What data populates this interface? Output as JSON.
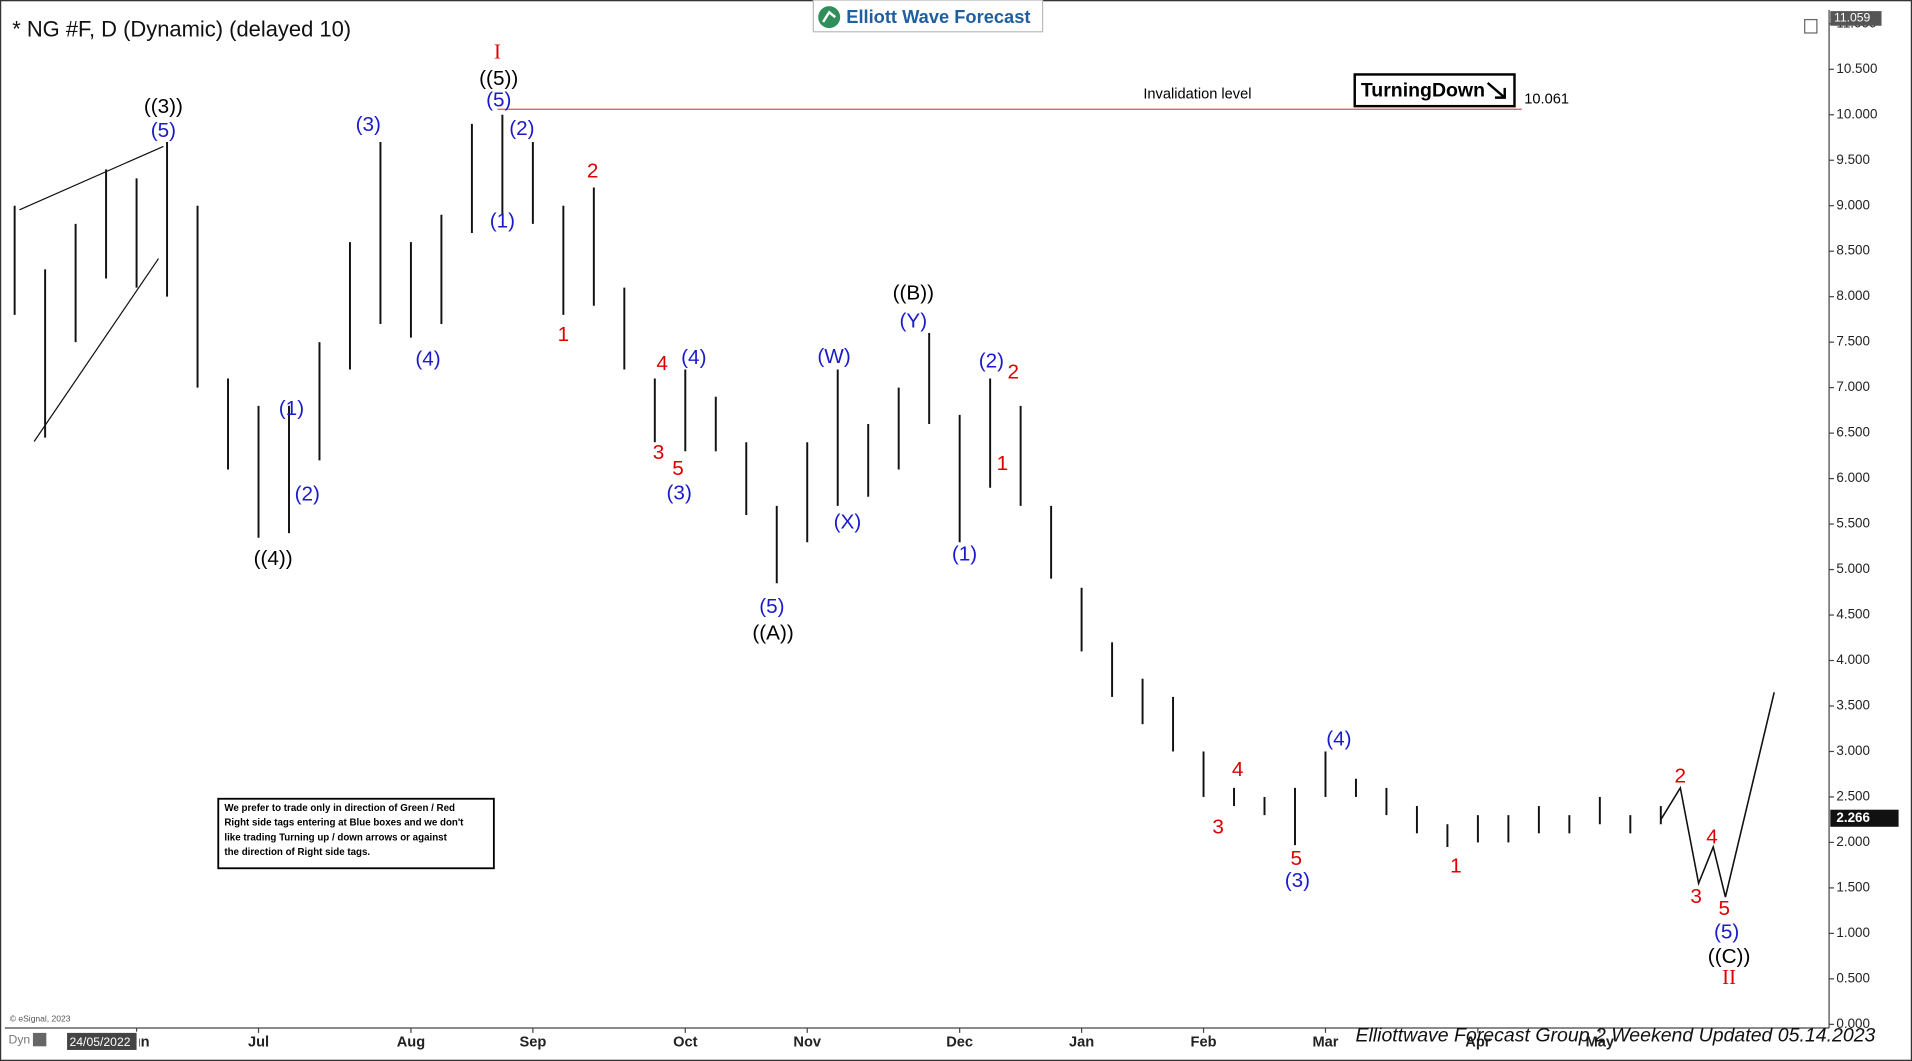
{
  "chart_data": {
    "type": "ohlc",
    "title": "* NG #F, D (Dynamic) (delayed 10)",
    "color": "#111111",
    "categories": [
      null,
      null,
      null,
      null,
      "Jun",
      null,
      null,
      null,
      "Jul",
      null,
      null,
      null,
      null,
      "Aug",
      null,
      null,
      null,
      "Sep",
      null,
      null,
      null,
      null,
      "Oct",
      null,
      null,
      null,
      "Nov",
      null,
      null,
      null,
      null,
      "Dec",
      null,
      null,
      null,
      "Jan",
      null,
      null,
      null,
      "Feb",
      null,
      null,
      null,
      "Mar",
      null,
      null,
      null,
      null,
      "Apr",
      null,
      null,
      null,
      "May",
      null,
      null
    ],
    "high": [
      9.0,
      8.3,
      8.8,
      9.4,
      9.3,
      9.7,
      9.0,
      7.1,
      6.8,
      6.8,
      7.5,
      8.6,
      9.7,
      8.6,
      8.9,
      9.9,
      10.0,
      9.7,
      9.0,
      9.2,
      8.1,
      7.1,
      7.2,
      6.9,
      6.4,
      5.7,
      6.4,
      7.2,
      6.6,
      7.0,
      7.6,
      6.7,
      7.1,
      6.8,
      5.7,
      4.8,
      4.2,
      3.8,
      3.6,
      3.0,
      2.6,
      2.5,
      2.6,
      3.0,
      2.7,
      2.6,
      2.4,
      2.2,
      2.3,
      2.3,
      2.4,
      2.3,
      2.5,
      2.3,
      2.4
    ],
    "low": [
      7.8,
      6.45,
      7.5,
      8.2,
      8.1,
      8.0,
      7.0,
      6.1,
      5.35,
      5.4,
      6.2,
      7.2,
      7.7,
      7.55,
      7.7,
      8.7,
      8.9,
      8.8,
      7.8,
      7.9,
      7.2,
      6.4,
      6.3,
      6.3,
      5.6,
      4.85,
      5.3,
      5.7,
      5.8,
      6.1,
      6.6,
      5.3,
      5.9,
      5.7,
      4.9,
      4.1,
      3.6,
      3.3,
      3.0,
      2.5,
      2.4,
      2.3,
      1.97,
      2.5,
      2.5,
      2.3,
      2.1,
      1.95,
      2.0,
      2.0,
      2.1,
      2.1,
      2.2,
      2.1,
      2.2
    ],
    "projection": {
      "values": [
        2.25,
        2.6,
        1.55,
        1.95,
        1.4,
        3.65
      ]
    },
    "ylim": [
      0,
      11.1
    ],
    "yticks": [
      {
        "value": 0,
        "label": "0.000"
      },
      {
        "value": 0.5,
        "label": "0.500"
      },
      {
        "value": 1,
        "label": "1.000"
      },
      {
        "value": 1.5,
        "label": "1.500"
      },
      {
        "value": 2,
        "label": "2.000"
      },
      {
        "value": 2.5,
        "label": "2.500"
      },
      {
        "value": 3,
        "label": "3.000"
      },
      {
        "value": 3.5,
        "label": "3.500"
      },
      {
        "value": 4,
        "label": "4.000"
      },
      {
        "value": 4.5,
        "label": "4.500"
      },
      {
        "value": 5,
        "label": "5.000"
      },
      {
        "value": 5.5,
        "label": "5.500"
      },
      {
        "value": 6,
        "label": "6.000"
      },
      {
        "value": 6.5,
        "label": "6.500"
      },
      {
        "value": 7,
        "label": "7.000"
      },
      {
        "value": 7.5,
        "label": "7.500"
      },
      {
        "value": 8,
        "label": "8.000"
      },
      {
        "value": 8.5,
        "label": "8.500"
      },
      {
        "value": 9,
        "label": "9.000"
      },
      {
        "value": 9.5,
        "label": "9.500"
      },
      {
        "value": 10,
        "label": "10.000"
      },
      {
        "value": 10.5,
        "label": "10.500"
      },
      {
        "value": 11,
        "label": "11.000"
      }
    ],
    "invalidation": {
      "label": "Invalidation level",
      "value": 10.061,
      "color": "#e05050"
    },
    "last_price": 2.266,
    "axis_max": 11.059,
    "annotations": [
      {
        "text": "((3))",
        "color": "#000000"
      },
      {
        "text": "(5)",
        "color": "#1a1acc"
      },
      {
        "text": "((4))",
        "color": "#000000"
      },
      {
        "text": "(1)",
        "color": "#1a1acc"
      },
      {
        "text": "(2)",
        "color": "#1a1acc"
      },
      {
        "text": "(3)",
        "color": "#1a1acc"
      },
      {
        "text": "(4)",
        "color": "#1a1acc"
      },
      {
        "text": "I",
        "color": "#dd0000"
      },
      {
        "text": "((5))",
        "color": "#000000"
      },
      {
        "text": "(5)",
        "color": "#1a1acc"
      },
      {
        "text": "(2)",
        "color": "#1a1acc"
      },
      {
        "text": "(1)",
        "color": "#1a1acc"
      },
      {
        "text": "2",
        "color": "#dd0000"
      },
      {
        "text": "1",
        "color": "#dd0000"
      },
      {
        "text": "4",
        "color": "#dd0000"
      },
      {
        "text": "(4)",
        "color": "#1a1acc"
      },
      {
        "text": "3",
        "color": "#dd0000"
      },
      {
        "text": "5",
        "color": "#dd0000"
      },
      {
        "text": "(3)",
        "color": "#1a1acc"
      },
      {
        "text": "(5)",
        "color": "#1a1acc"
      },
      {
        "text": "((A))",
        "color": "#000000"
      },
      {
        "text": "(W)",
        "color": "#1a1acc"
      },
      {
        "text": "(X)",
        "color": "#1a1acc"
      },
      {
        "text": "((B))",
        "color": "#000000"
      },
      {
        "text": "(Y)",
        "color": "#1a1acc"
      },
      {
        "text": "(1)",
        "color": "#1a1acc"
      },
      {
        "text": "(2)",
        "color": "#1a1acc"
      },
      {
        "text": "2",
        "color": "#dd0000"
      },
      {
        "text": "1",
        "color": "#dd0000"
      },
      {
        "text": "4",
        "color": "#dd0000"
      },
      {
        "text": "3",
        "color": "#dd0000"
      },
      {
        "text": "5",
        "color": "#dd0000"
      },
      {
        "text": "(3)",
        "color": "#1a1acc"
      },
      {
        "text": "(4)",
        "color": "#1a1acc"
      },
      {
        "text": "1",
        "color": "#dd0000"
      },
      {
        "text": "2",
        "color": "#dd0000"
      },
      {
        "text": "4",
        "color": "#dd0000"
      },
      {
        "text": "3",
        "color": "#dd0000"
      },
      {
        "text": "5",
        "color": "#dd0000"
      },
      {
        "text": "(5)",
        "color": "#1a1acc"
      },
      {
        "text": "((C))",
        "color": "#000000"
      },
      {
        "text": "II",
        "color": "#dd0000"
      }
    ]
  },
  "logo": "Elliott Wave Forecast",
  "signal": "TurningDown",
  "note": [
    "We prefer to trade only in direction of Green / Red",
    "Right side tags entering at Blue boxes and we don't",
    "like trading Turning up / down arrows or against",
    "the direction of Right side tags."
  ],
  "copyright": "© eSignal, 2023",
  "dyn": "Dyn",
  "date_box": "24/05/2022",
  "footer": "Elliottwave Forecast Group 2 Weekend Updated 05.14.2023"
}
